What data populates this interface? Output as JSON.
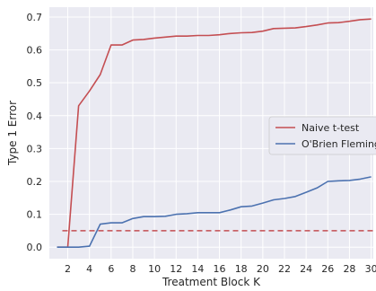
{
  "chart_data": {
    "type": "line",
    "xlabel": "Treatment Block K",
    "ylabel": "Type 1 Error",
    "xlim": [
      0.3,
      30.2
    ],
    "ylim": [
      -0.035,
      0.73
    ],
    "xticks": [
      2,
      4,
      6,
      8,
      10,
      12,
      14,
      16,
      18,
      20,
      22,
      24,
      26,
      28,
      30
    ],
    "xtick_labels": [
      "2",
      "4",
      "6",
      "8",
      "10",
      "12",
      "14",
      "16",
      "18",
      "20",
      "22",
      "24",
      "26",
      "28",
      "30"
    ],
    "yticks": [
      0.0,
      0.1,
      0.2,
      0.3,
      0.4,
      0.5,
      0.6,
      0.7
    ],
    "ytick_labels": [
      "0.0",
      "0.1",
      "0.2",
      "0.3",
      "0.4",
      "0.5",
      "0.6",
      "0.7"
    ],
    "grid": true,
    "legend_position": "center-right",
    "reference_line": {
      "y": 0.05,
      "style": "dashed",
      "color": "#c44e52"
    },
    "series": [
      {
        "name": "Naive t-test",
        "color": "#c44e52",
        "x": [
          1,
          2,
          3,
          4,
          5,
          6,
          7,
          8,
          9,
          10,
          11,
          12,
          13,
          14,
          15,
          16,
          17,
          18,
          19,
          20,
          21,
          22,
          23,
          24,
          25,
          26,
          27,
          28,
          29,
          30
        ],
        "values": [
          0.0,
          0.0,
          0.43,
          0.475,
          0.525,
          0.615,
          0.615,
          0.63,
          0.632,
          0.636,
          0.639,
          0.642,
          0.642,
          0.644,
          0.644,
          0.646,
          0.65,
          0.652,
          0.653,
          0.657,
          0.665,
          0.666,
          0.667,
          0.671,
          0.676,
          0.682,
          0.683,
          0.687,
          0.692,
          0.694
        ]
      },
      {
        "name": "O'Brien Fleming",
        "color": "#4c72b0",
        "x": [
          1,
          2,
          3,
          4,
          5,
          6,
          7,
          8,
          9,
          10,
          11,
          12,
          13,
          14,
          15,
          16,
          17,
          18,
          19,
          20,
          21,
          22,
          23,
          24,
          25,
          26,
          27,
          28,
          29,
          30
        ],
        "values": [
          0.0,
          0.0,
          0.0,
          0.003,
          0.07,
          0.074,
          0.074,
          0.087,
          0.093,
          0.093,
          0.094,
          0.1,
          0.102,
          0.105,
          0.105,
          0.105,
          0.113,
          0.123,
          0.125,
          0.134,
          0.144,
          0.148,
          0.154,
          0.167,
          0.18,
          0.2,
          0.202,
          0.203,
          0.207,
          0.214
        ]
      }
    ]
  }
}
